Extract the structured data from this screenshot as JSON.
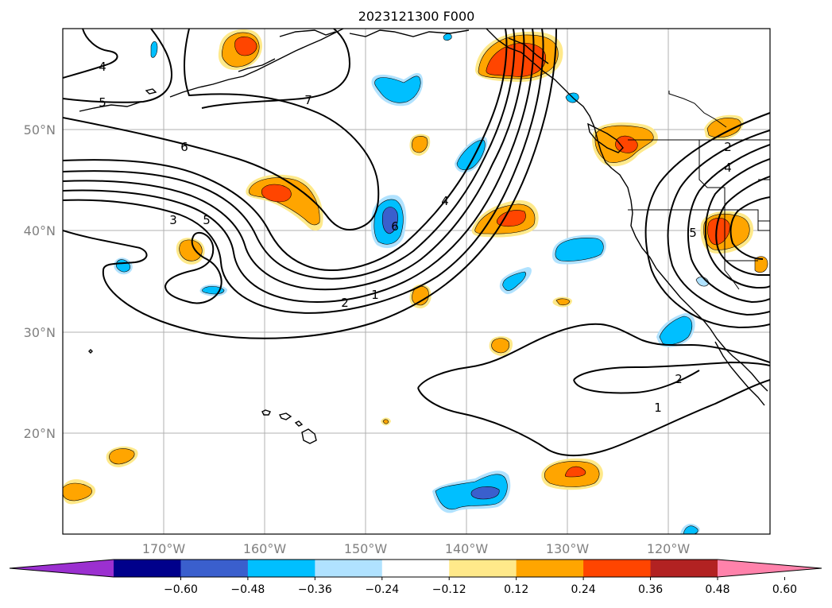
{
  "title": "2023121300 F000",
  "lon_ticks": [
    "170°W",
    "160°W",
    "150°W",
    "140°W",
    "130°W",
    "120°W"
  ],
  "lat_ticks": [
    "50°N",
    "40°N",
    "30°N",
    "20°N"
  ],
  "colorbar": {
    "ticks": [
      "−0.60",
      "−0.48",
      "−0.36",
      "−0.24",
      "−0.12",
      "0.12",
      "0.24",
      "0.36",
      "0.48",
      "0.60"
    ],
    "colors": [
      "#9b30d0",
      "#00008b",
      "#3a5fcd",
      "#00bfff",
      "#b0e2ff",
      "#ffffff",
      "#ffe98a",
      "#ffa500",
      "#ff4500",
      "#b22222",
      "#ff82ab"
    ]
  },
  "contour_labels": [
    "4",
    "5",
    "6",
    "7",
    "3",
    "5",
    "6",
    "4",
    "2",
    "1",
    "2",
    "1",
    "5",
    "4",
    "2"
  ],
  "colors": {
    "positive_1": "#ffe98a",
    "positive_2": "#ffa500",
    "positive_3": "#ff4500",
    "negative_1": "#b0e2ff",
    "negative_2": "#00bfff",
    "negative_3": "#3a5fcd"
  }
}
